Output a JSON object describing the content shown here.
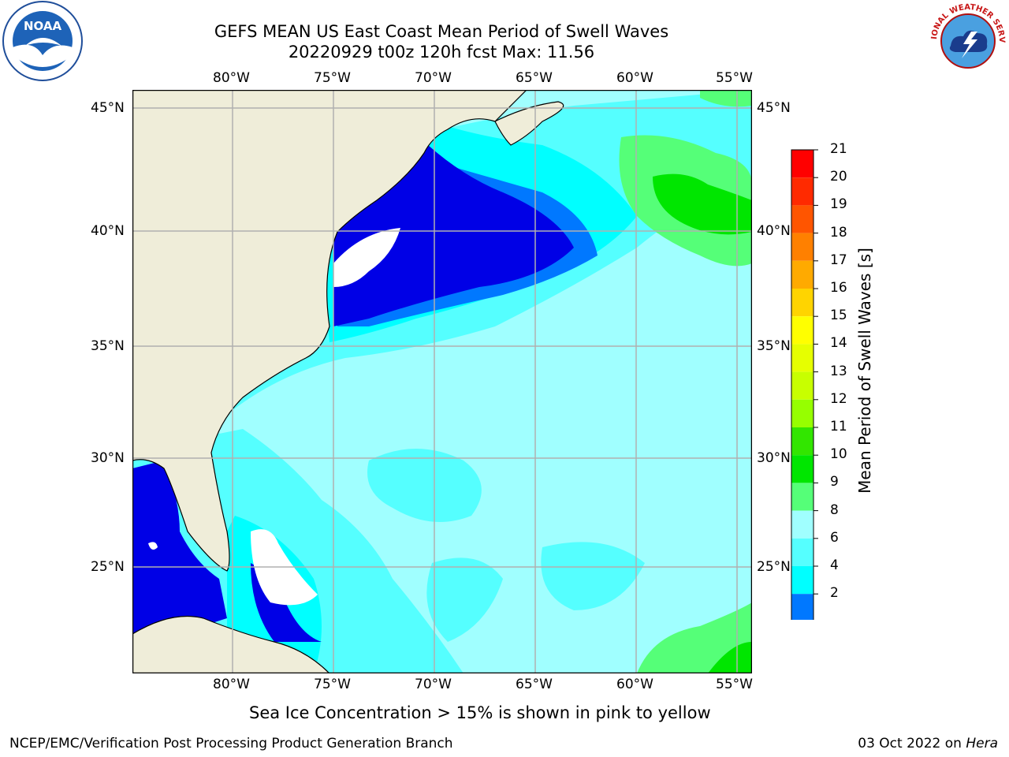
{
  "title": {
    "line1": "GEFS MEAN US East Coast Mean Period of Swell Waves",
    "line2": "20220929 t00z 120h fcst   Max: 11.56"
  },
  "logos": {
    "noaa_text": "NOAA",
    "nws_text": "NATIONAL WEATHER SERVICE"
  },
  "map": {
    "lon_ticks": [
      "80°W",
      "75°W",
      "70°W",
      "65°W",
      "60°W",
      "55°W"
    ],
    "lat_ticks": [
      "45°N",
      "40°N",
      "35°N",
      "30°N",
      "25°N"
    ],
    "colors": {
      "land": "#efedd9",
      "ocean_low": "#00ffff",
      "ocean_mid": "#a0ffff",
      "grid": "#b0b0b0"
    }
  },
  "colorbar": {
    "label": "Mean Period of Swell Waves [s]",
    "ticks": [
      "21",
      "20",
      "19",
      "18",
      "17",
      "16",
      "15",
      "14",
      "13",
      "12",
      "11",
      "10",
      "9",
      "8",
      "6",
      "4",
      "2"
    ],
    "colors": [
      "#ff0000",
      "#ff2a00",
      "#ff5500",
      "#ff8000",
      "#ffaa00",
      "#ffd400",
      "#ffff00",
      "#e6ff00",
      "#c8ff00",
      "#96ff00",
      "#32e600",
      "#00e600",
      "#55ff78",
      "#a0ffff",
      "#55ffff",
      "#00ffff",
      "#0078ff"
    ],
    "under_color": "#0000e6"
  },
  "footnote": "Sea Ice Concentration > 15% is shown in pink to yellow",
  "credit": "NCEP/EMC/Verification Post Processing Product Generation Branch",
  "date": {
    "text": "03 Oct 2022 on",
    "machine": "Hera"
  }
}
